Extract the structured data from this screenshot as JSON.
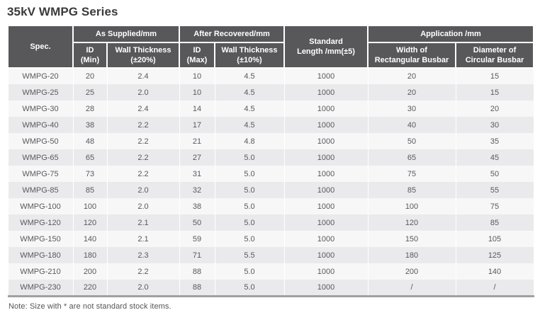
{
  "title": "35kV WMPG Series",
  "note": "Note: Size with * are not standard stock items.",
  "colors": {
    "header_bg": "#58585a",
    "header_text": "#ffffff",
    "row_odd": "#f7f7f8",
    "row_even": "#eaeaec",
    "body_text": "#59595b",
    "bottom_rule": "#a0a0a2"
  },
  "table": {
    "header": {
      "spec": "Spec.",
      "as_supplied": "As Supplied/mm",
      "after_recovered": "After Recovered/mm",
      "standard_length": {
        "l1": "Standard",
        "l2": "Length /mm(±5)"
      },
      "application": "Application /mm",
      "id_min": {
        "l1": "ID",
        "l2": "(Min)"
      },
      "wall_thickness_20": {
        "l1": "Wall Thickness",
        "l2": "(±20%)"
      },
      "id_max": {
        "l1": "ID",
        "l2": "(Max)"
      },
      "wall_thickness_10": {
        "l1": "Wall Thickness",
        "l2": "(±10%)"
      },
      "width_rect": {
        "l1": "Width of",
        "l2": "Rectangular Busbar"
      },
      "dia_circ": {
        "l1": "Diameter of",
        "l2": "Circular Busbar"
      }
    },
    "rows": [
      [
        "WMPG-20",
        "20",
        "2.4",
        "10",
        "4.5",
        "1000",
        "20",
        "15"
      ],
      [
        "WMPG-25",
        "25",
        "2.0",
        "10",
        "4.5",
        "1000",
        "20",
        "15"
      ],
      [
        "WMPG-30",
        "28",
        "2.4",
        "14",
        "4.5",
        "1000",
        "30",
        "20"
      ],
      [
        "WMPG-40",
        "38",
        "2.2",
        "17",
        "4.5",
        "1000",
        "40",
        "30"
      ],
      [
        "WMPG-50",
        "48",
        "2.2",
        "21",
        "4.8",
        "1000",
        "50",
        "35"
      ],
      [
        "WMPG-65",
        "65",
        "2.2",
        "27",
        "5.0",
        "1000",
        "65",
        "45"
      ],
      [
        "WMPG-75",
        "73",
        "2.2",
        "31",
        "5.0",
        "1000",
        "75",
        "50"
      ],
      [
        "WMPG-85",
        "85",
        "2.0",
        "32",
        "5.0",
        "1000",
        "85",
        "55"
      ],
      [
        "WMPG-100",
        "100",
        "2.0",
        "38",
        "5.0",
        "1000",
        "100",
        "75"
      ],
      [
        "WMPG-120",
        "120",
        "2.1",
        "50",
        "5.0",
        "1000",
        "120",
        "85"
      ],
      [
        "WMPG-150",
        "140",
        "2.1",
        "59",
        "5.0",
        "1000",
        "150",
        "105"
      ],
      [
        "WMPG-180",
        "180",
        "2.3",
        "71",
        "5.5",
        "1000",
        "180",
        "125"
      ],
      [
        "WMPG-210",
        "200",
        "2.2",
        "88",
        "5.0",
        "1000",
        "200",
        "140"
      ],
      [
        "WMPG-230",
        "220",
        "2.0",
        "88",
        "5.0",
        "1000",
        "/",
        "/"
      ]
    ]
  }
}
